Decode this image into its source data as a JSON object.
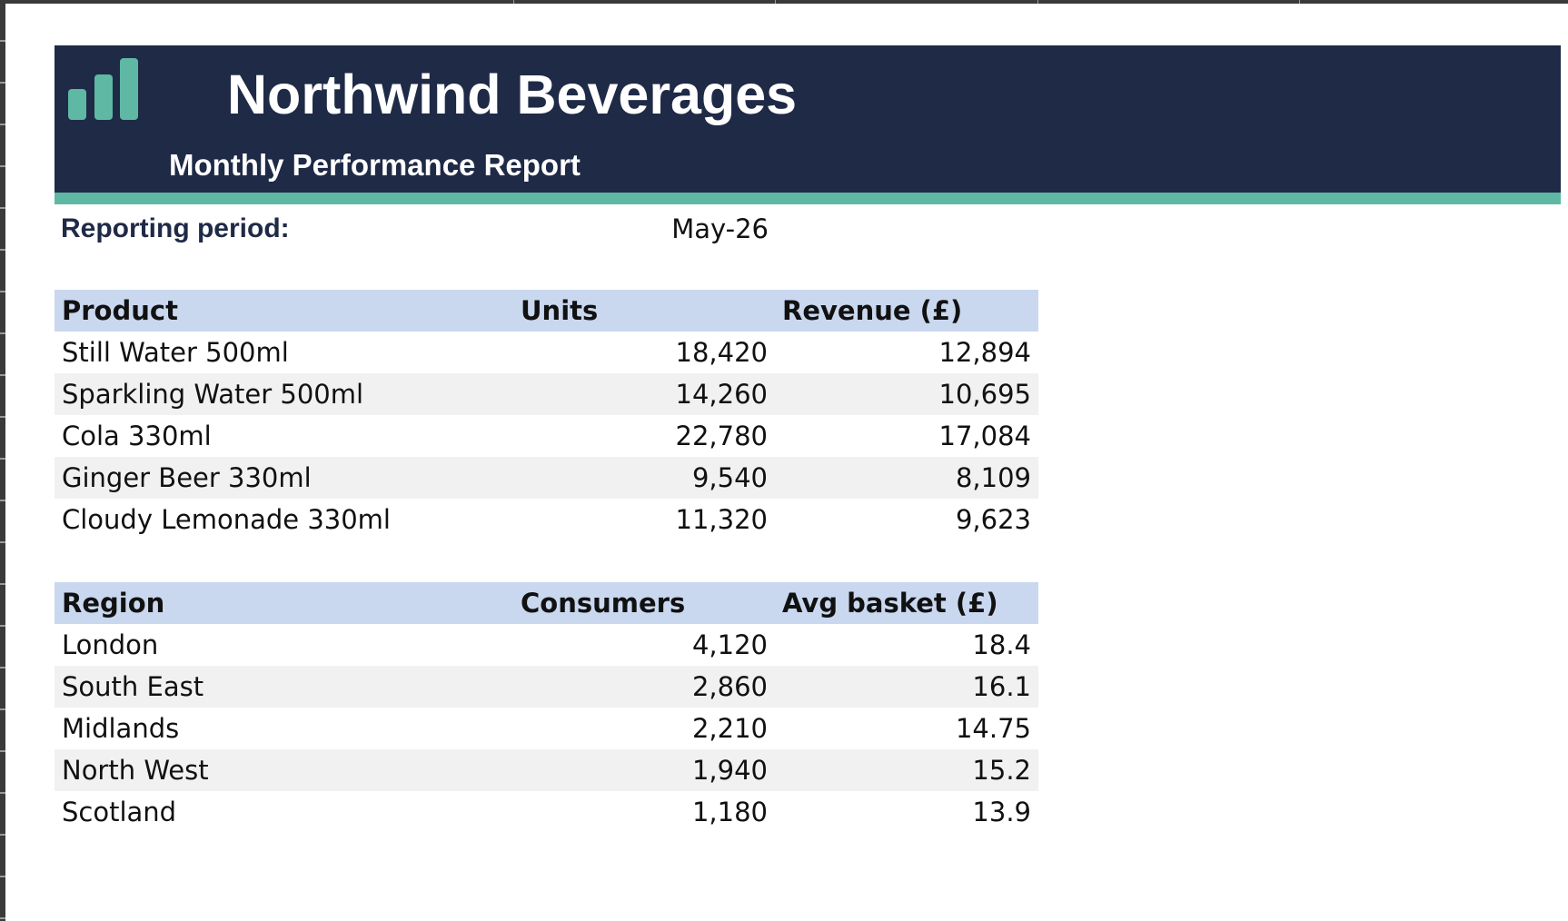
{
  "header": {
    "title": "Northwind Beverages",
    "subtitle": "Monthly Performance Report",
    "logo_icon": "bar-chart-icon",
    "banner_color": "#1f2a47",
    "accent_color": "#5fb8a3"
  },
  "period": {
    "label": "Reporting period:",
    "value": "May-26"
  },
  "products": {
    "columns": [
      "Product",
      "Units",
      "Revenue (£)"
    ],
    "header_color": "#c9d8ef",
    "rows": [
      {
        "product": "Still Water 500ml",
        "units": "18,420",
        "revenue": "12,894"
      },
      {
        "product": "Sparkling Water 500ml",
        "units": "14,260",
        "revenue": "10,695"
      },
      {
        "product": "Cola 330ml",
        "units": "22,780",
        "revenue": "17,084"
      },
      {
        "product": "Ginger Beer 330ml",
        "units": "9,540",
        "revenue": "8,109"
      },
      {
        "product": "Cloudy Lemonade 330ml",
        "units": "11,320",
        "revenue": "9,623"
      }
    ]
  },
  "regions": {
    "columns": [
      "Region",
      "Consumers",
      "Avg basket (£)"
    ],
    "rows": [
      {
        "region": "London",
        "consumers": "4,120",
        "avg_basket": "18.4"
      },
      {
        "region": "South East",
        "consumers": "2,860",
        "avg_basket": "16.1"
      },
      {
        "region": "Midlands",
        "consumers": "2,210",
        "avg_basket": "14.75"
      },
      {
        "region": "North West",
        "consumers": "1,940",
        "avg_basket": "15.2"
      },
      {
        "region": "Scotland",
        "consumers": "1,180",
        "avg_basket": "13.9"
      }
    ]
  }
}
